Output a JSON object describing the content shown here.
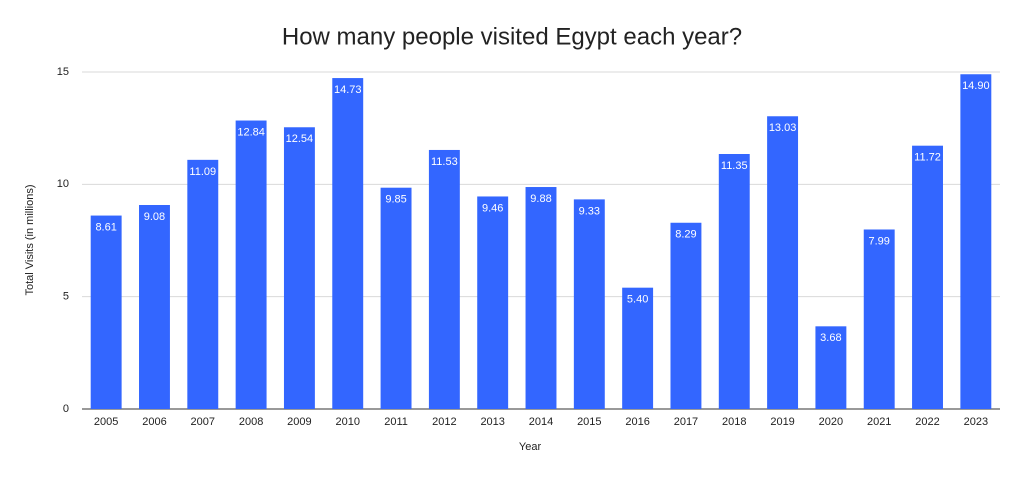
{
  "chart_data": {
    "type": "bar",
    "title": "How many people visited Egypt each year?",
    "x_label": "Year",
    "y_label": "Total Visits (in millions)",
    "categories": [
      "2005",
      "2006",
      "2007",
      "2008",
      "2009",
      "2010",
      "2011",
      "2012",
      "2013",
      "2014",
      "2015",
      "2016",
      "2017",
      "2018",
      "2019",
      "2020",
      "2021",
      "2022",
      "2023"
    ],
    "values": [
      8.61,
      9.08,
      11.09,
      12.84,
      12.54,
      14.73,
      9.85,
      11.53,
      9.46,
      9.88,
      9.33,
      5.4,
      8.29,
      11.35,
      13.03,
      3.68,
      7.99,
      11.72,
      14.9
    ],
    "value_labels": [
      "8.61",
      "9.08",
      "11.09",
      "12.84",
      "12.54",
      "14.73",
      "9.85",
      "11.53",
      "9.46",
      "9.88",
      "9.33",
      "5.40",
      "8.29",
      "11.35",
      "13.03",
      "3.68",
      "7.99",
      "11.72",
      "14.90"
    ],
    "color": "#3366ff",
    "ylim": [
      0,
      15
    ],
    "yticks": [
      0,
      5,
      10,
      15
    ],
    "grid": true
  }
}
